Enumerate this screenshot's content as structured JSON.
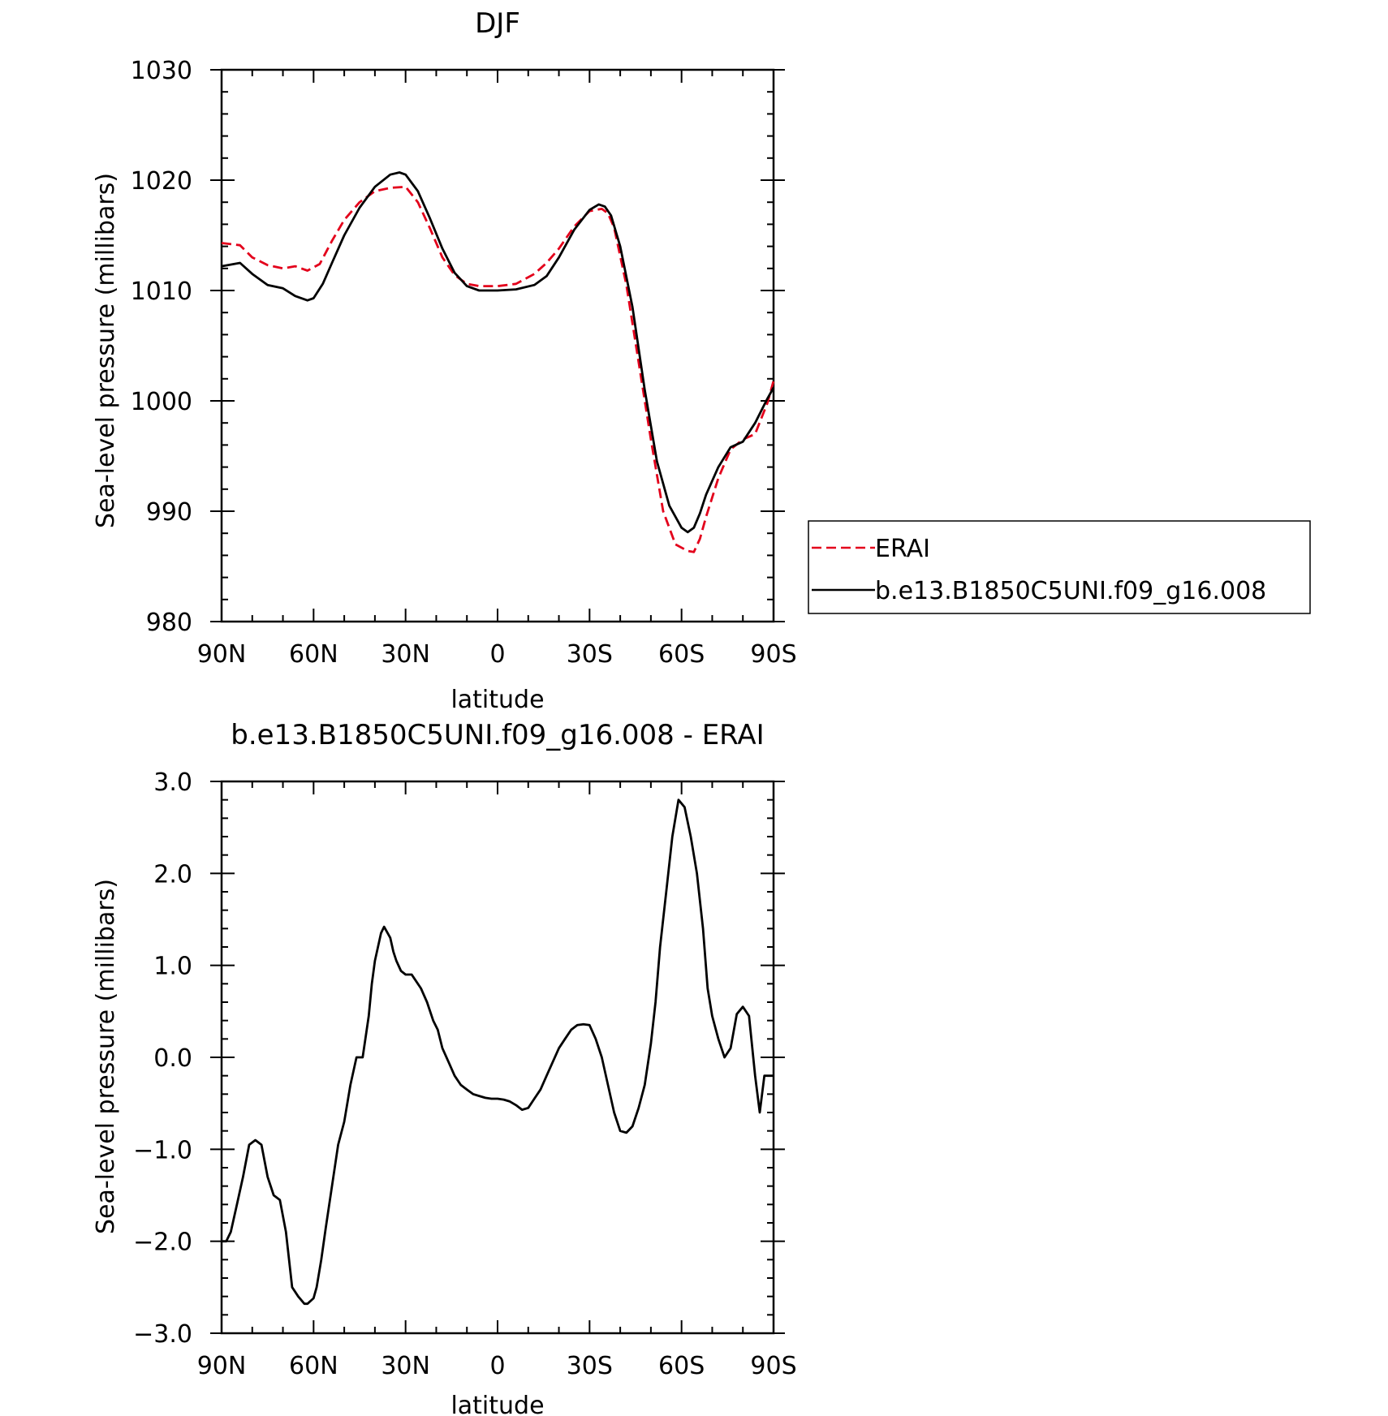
{
  "chart_data": [
    {
      "type": "line",
      "title": "DJF",
      "xlabel": "latitude",
      "ylabel": "Sea-level pressure (millibars)",
      "x_tick_labels": [
        "90N",
        "60N",
        "30N",
        "0",
        "30S",
        "60S",
        "90S"
      ],
      "x_tick_values": [
        90,
        60,
        30,
        0,
        -30,
        -60,
        -90
      ],
      "y_tick_labels": [
        "980",
        "990",
        "1000",
        "1010",
        "1020",
        "1030"
      ],
      "y_tick_values": [
        980,
        990,
        1000,
        1010,
        1020,
        1030
      ],
      "xlim": [
        90,
        -90
      ],
      "ylim": [
        980,
        1030
      ],
      "legend": "right",
      "series": [
        {
          "name": "ERAI",
          "color": "#e3001b",
          "dash": true,
          "x": [
            90,
            84,
            80,
            75,
            70,
            66,
            62,
            58,
            54,
            50,
            45,
            40,
            35,
            30,
            26,
            22,
            18,
            14,
            10,
            6,
            0,
            -6,
            -12,
            -16,
            -20,
            -25,
            -30,
            -34,
            -36,
            -38,
            -42,
            -46,
            -50,
            -54,
            -58,
            -62,
            -64,
            -66,
            -68,
            -72,
            -76,
            -80,
            -84,
            -88,
            -90
          ],
          "y": [
            1014.3,
            1014.1,
            1013.0,
            1012.3,
            1012.0,
            1012.2,
            1011.8,
            1012.4,
            1014.5,
            1016.4,
            1018.0,
            1019.0,
            1019.3,
            1019.4,
            1018.0,
            1015.6,
            1013.0,
            1011.4,
            1010.6,
            1010.4,
            1010.4,
            1010.6,
            1011.5,
            1012.5,
            1013.8,
            1015.8,
            1017.2,
            1017.4,
            1017.0,
            1015.7,
            1010.5,
            1003.5,
            996.5,
            990.0,
            987.0,
            986.4,
            986.3,
            987.5,
            989.5,
            993.0,
            995.6,
            996.5,
            997.0,
            999.8,
            1001.8
          ]
        },
        {
          "name": "b.e13.B1850C5UNI.f09_g16.008",
          "color": "#000000",
          "dash": false,
          "x": [
            90,
            84,
            80,
            75,
            70,
            66,
            62,
            60,
            57,
            54,
            50,
            45,
            40,
            35,
            32,
            30,
            26,
            22,
            18,
            14,
            10,
            6,
            0,
            -6,
            -12,
            -16,
            -20,
            -25,
            -30,
            -33,
            -35,
            -37,
            -40,
            -44,
            -48,
            -52,
            -56,
            -60,
            -62,
            -64,
            -66,
            -68,
            -72,
            -76,
            -80,
            -84,
            -88,
            -90
          ],
          "y": [
            1012.2,
            1012.5,
            1011.5,
            1010.5,
            1010.2,
            1009.5,
            1009.1,
            1009.3,
            1010.6,
            1012.5,
            1015.0,
            1017.5,
            1019.4,
            1020.5,
            1020.7,
            1020.5,
            1019.0,
            1016.5,
            1013.8,
            1011.6,
            1010.4,
            1010.0,
            1010.0,
            1010.1,
            1010.5,
            1011.3,
            1013.0,
            1015.5,
            1017.3,
            1017.8,
            1017.6,
            1016.8,
            1014.0,
            1008.5,
            1001.0,
            994.5,
            990.5,
            988.5,
            988.1,
            988.5,
            989.8,
            991.5,
            994.0,
            995.8,
            996.3,
            998.0,
            1000.2,
            1001.2
          ]
        }
      ]
    },
    {
      "type": "line",
      "title": "b.e13.B1850C5UNI.f09_g16.008 - ERAI",
      "xlabel": "latitude",
      "ylabel": "Sea-level pressure (millibars)",
      "x_tick_labels": [
        "90N",
        "60N",
        "30N",
        "0",
        "30S",
        "60S",
        "90S"
      ],
      "x_tick_values": [
        90,
        60,
        30,
        0,
        -30,
        -60,
        -90
      ],
      "y_tick_labels": [
        "-3.0",
        "-2.0",
        "-1.0",
        "0.0",
        "1.0",
        "2.0",
        "3.0"
      ],
      "y_tick_values": [
        -3,
        -2,
        -1,
        0,
        1,
        2,
        3
      ],
      "xlim": [
        90,
        -90
      ],
      "ylim": [
        -3,
        3
      ],
      "series": [
        {
          "color": "#000000",
          "dash": false,
          "x": [
            90,
            88.5,
            87,
            85,
            83,
            81,
            79,
            77,
            75,
            73,
            71,
            69,
            67,
            65,
            63,
            62,
            60,
            59,
            57.5,
            56,
            54,
            52,
            50,
            48,
            46,
            44,
            42,
            41,
            40,
            38,
            37,
            35,
            34,
            33,
            31.5,
            30,
            28,
            27,
            25,
            23,
            21,
            19.5,
            18,
            16,
            14,
            12,
            10,
            8,
            6,
            4,
            2,
            0,
            -2,
            -4,
            -6,
            -8,
            -10,
            -12,
            -14,
            -16,
            -18,
            -20,
            -22,
            -24,
            -26,
            -28,
            -30,
            -32,
            -34,
            -36,
            -38,
            -40,
            -42,
            -44,
            -46,
            -48,
            -50,
            -51.5,
            -53,
            -55,
            -57,
            -59,
            -61,
            -63,
            -65,
            -67,
            -68.5,
            -70,
            -72,
            -74,
            -76,
            -78,
            -80,
            -82,
            -84,
            -85.5,
            -87,
            -88.5,
            -90
          ],
          "y": [
            -2.0,
            -2.0,
            -1.9,
            -1.6,
            -1.3,
            -0.95,
            -0.9,
            -0.95,
            -1.3,
            -1.5,
            -1.55,
            -1.9,
            -2.5,
            -2.6,
            -2.68,
            -2.68,
            -2.62,
            -2.5,
            -2.2,
            -1.85,
            -1.4,
            -0.95,
            -0.7,
            -0.3,
            0.0,
            0.0,
            0.45,
            0.8,
            1.05,
            1.35,
            1.42,
            1.3,
            1.15,
            1.05,
            0.94,
            0.9,
            0.9,
            0.85,
            0.75,
            0.6,
            0.4,
            0.3,
            0.1,
            -0.05,
            -0.2,
            -0.3,
            -0.35,
            -0.4,
            -0.42,
            -0.44,
            -0.45,
            -0.45,
            -0.46,
            -0.48,
            -0.52,
            -0.57,
            -0.55,
            -0.45,
            -0.35,
            -0.2,
            -0.05,
            0.1,
            0.2,
            0.3,
            0.35,
            0.36,
            0.35,
            0.2,
            0.0,
            -0.3,
            -0.6,
            -0.8,
            -0.82,
            -0.75,
            -0.55,
            -0.3,
            0.15,
            0.6,
            1.2,
            1.8,
            2.4,
            2.8,
            2.72,
            2.4,
            2.0,
            1.4,
            0.75,
            0.45,
            0.2,
            0.0,
            0.1,
            0.47,
            0.55,
            0.45,
            -0.2,
            -0.6,
            -0.2,
            -0.2,
            -0.2
          ]
        }
      ]
    }
  ]
}
